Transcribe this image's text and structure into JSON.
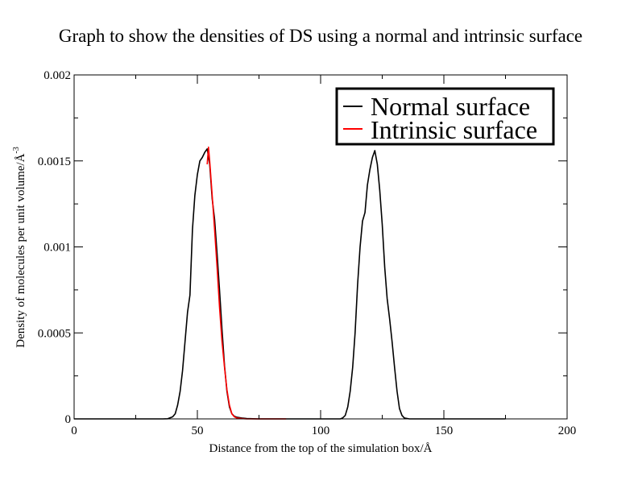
{
  "chart_data": {
    "type": "line",
    "title": "Graph to show the densities of DS using a normal and intrinsic surface",
    "xlabel": "Distance from the top of the simulation box/Å",
    "ylabel": "Density of molecules per unit volume/Å",
    "ylabel_exponent": "-3",
    "xlim": [
      0,
      200
    ],
    "ylim": [
      0,
      0.002
    ],
    "xticks": [
      {
        "value": 0,
        "label": "0"
      },
      {
        "value": 50,
        "label": "50"
      },
      {
        "value": 100,
        "label": "100"
      },
      {
        "value": 150,
        "label": "150"
      },
      {
        "value": 200,
        "label": "200"
      }
    ],
    "yticks": [
      {
        "value": 0,
        "label": "0"
      },
      {
        "value": 0.0005,
        "label": "0.0005"
      },
      {
        "value": 0.001,
        "label": "0.001"
      },
      {
        "value": 0.0015,
        "label": "0.0015"
      },
      {
        "value": 0.002,
        "label": "0.002"
      }
    ],
    "grid": false,
    "legend_position": "top-right",
    "series": [
      {
        "name": "Normal surface",
        "color": "#000000",
        "x": [
          0,
          36,
          38,
          40,
          41,
          42,
          43,
          44,
          45,
          46,
          47,
          48,
          49,
          50,
          51,
          52,
          53,
          54,
          55,
          56,
          57,
          58,
          59,
          60,
          61,
          62,
          63,
          64,
          65,
          66,
          68,
          70,
          75,
          108,
          109,
          110,
          111,
          112,
          113,
          114,
          115,
          116,
          117,
          118,
          119,
          120,
          121,
          122,
          123,
          124,
          125,
          126,
          127,
          128,
          129,
          130,
          131,
          132,
          133,
          134,
          136,
          140,
          160,
          175
        ],
        "y": [
          0,
          0,
          1e-06,
          1.2e-05,
          3e-05,
          8e-05,
          0.00016,
          0.00028,
          0.00045,
          0.00062,
          0.00072,
          0.0011,
          0.0013,
          0.00142,
          0.0015,
          0.00152,
          0.00155,
          0.00157,
          0.00148,
          0.00128,
          0.00116,
          0.00096,
          0.00075,
          0.00052,
          0.00031,
          0.00016,
          7e-05,
          3e-05,
          1.5e-05,
          1e-05,
          5e-06,
          2e-06,
          0,
          0,
          6e-06,
          2e-05,
          7e-05,
          0.00016,
          0.0003,
          0.0005,
          0.00078,
          0.001,
          0.00115,
          0.0012,
          0.00136,
          0.00145,
          0.00152,
          0.00156,
          0.00148,
          0.00133,
          0.00113,
          0.00088,
          0.0007,
          0.00058,
          0.00045,
          0.0003,
          0.00016,
          6e-05,
          2e-05,
          5e-06,
          0,
          0,
          0,
          0
        ]
      },
      {
        "name": "Intrinsic surface",
        "color": "#ff0000",
        "x": [
          54,
          54.5,
          55,
          56,
          57,
          58,
          59,
          60,
          61,
          62,
          63,
          64,
          65,
          66,
          68,
          70,
          75,
          86
        ],
        "y": [
          0.00148,
          0.00158,
          0.0015,
          0.0013,
          0.0011,
          0.00088,
          0.00065,
          0.00045,
          0.0003,
          0.00017,
          8e-05,
          3e-05,
          1.2e-05,
          5e-06,
          2e-06,
          0,
          0,
          0
        ]
      }
    ]
  }
}
